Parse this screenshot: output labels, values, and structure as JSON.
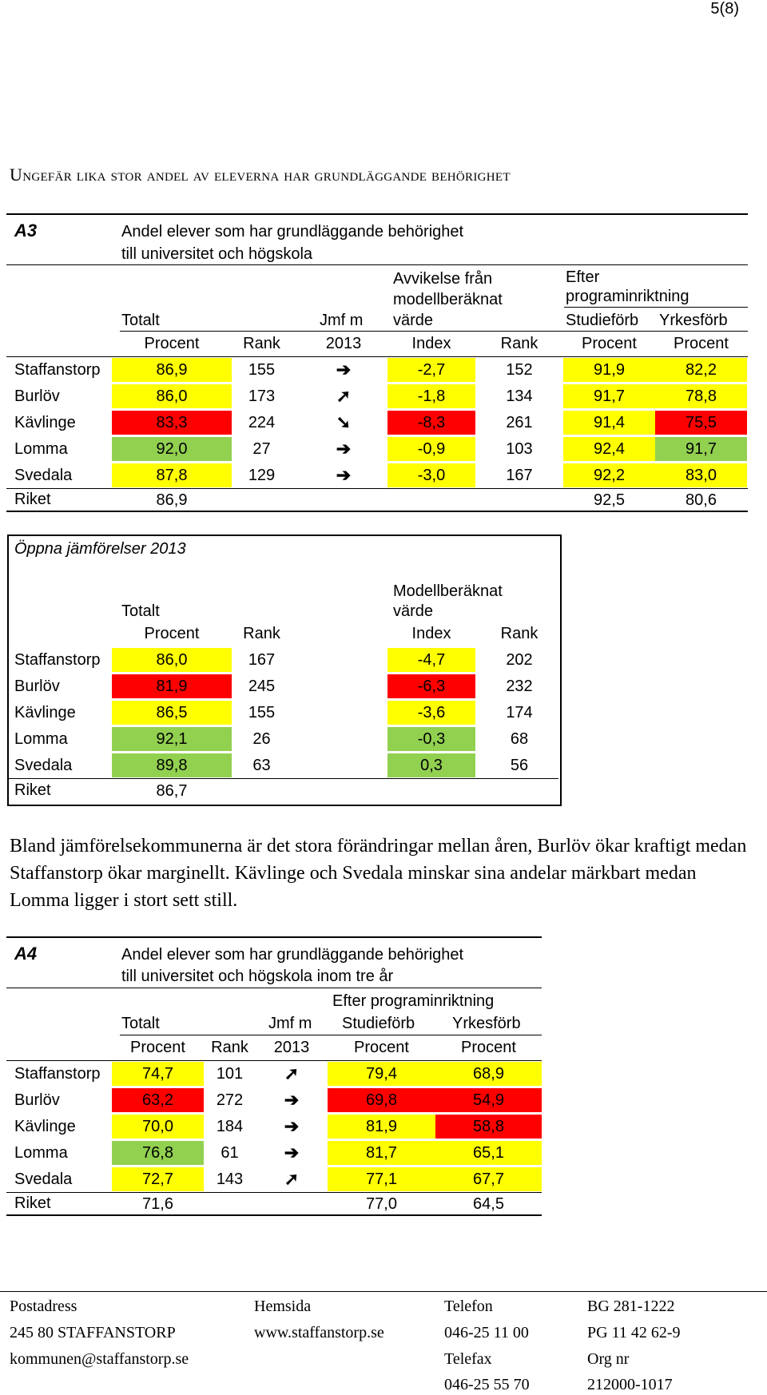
{
  "page_number": "5(8)",
  "heading": "Ungefär lika stor andel av eleverna har grundläggande behörighet",
  "a3": {
    "label": "A3",
    "title_line1": "Andel elever som har grundläggande behörighet",
    "title_line2": "till universitet och högskola",
    "hdr_avvikelse_1": "Avvikelse från",
    "hdr_avvikelse_2": "modellberäknat",
    "hdr_avvikelse_3": "värde",
    "hdr_efter_1": "Efter",
    "hdr_efter_2": "programinriktning",
    "hdr_totalt": "Totalt",
    "hdr_jmf": "Jmf m",
    "hdr_studieforb": "Studieförb",
    "hdr_yrkesforb": "Yrkesförb",
    "sub_procent": "Procent",
    "sub_rank": "Rank",
    "sub_2013": "2013",
    "sub_index": "Index",
    "sub_rank2": "Rank",
    "sub_procent2": "Procent",
    "sub_procent3": "Procent",
    "rows": [
      {
        "name": "Staffanstorp",
        "procent": "86,9",
        "rank": "155",
        "arrow": "➔",
        "index": "-2,7",
        "rank2": "152",
        "studie": "91,9",
        "yrkes": "82,2"
      },
      {
        "name": "Burlöv",
        "procent": "86,0",
        "rank": "173",
        "arrow": "➚",
        "index": "-1,8",
        "rank2": "134",
        "studie": "91,7",
        "yrkes": "78,8"
      },
      {
        "name": "Kävlinge",
        "procent": "83,3",
        "rank": "224",
        "arrow": "➘",
        "index": "-8,3",
        "rank2": "261",
        "studie": "91,4",
        "yrkes": "75,5"
      },
      {
        "name": "Lomma",
        "procent": "92,0",
        "rank": "27",
        "arrow": "➔",
        "index": "-0,9",
        "rank2": "103",
        "studie": "92,4",
        "yrkes": "91,7"
      },
      {
        "name": "Svedala",
        "procent": "87,8",
        "rank": "129",
        "arrow": "➔",
        "index": "-3,0",
        "rank2": "167",
        "studie": "92,2",
        "yrkes": "83,0"
      }
    ],
    "riket": {
      "name": "Riket",
      "procent": "86,9",
      "studie": "92,5",
      "yrkes": "80,6"
    }
  },
  "oppna": {
    "title": "Öppna jämförelser 2013",
    "hdr_totalt": "Totalt",
    "hdr_modell_1": "Modellberäknat",
    "hdr_modell_2": "värde",
    "sub_procent": "Procent",
    "sub_rank": "Rank",
    "sub_index": "Index",
    "sub_rank2": "Rank",
    "rows": [
      {
        "name": "Staffanstorp",
        "procent": "86,0",
        "rank": "167",
        "index": "-4,7",
        "rank2": "202"
      },
      {
        "name": "Burlöv",
        "procent": "81,9",
        "rank": "245",
        "index": "-6,3",
        "rank2": "232"
      },
      {
        "name": "Kävlinge",
        "procent": "86,5",
        "rank": "155",
        "index": "-3,6",
        "rank2": "174"
      },
      {
        "name": "Lomma",
        "procent": "92,1",
        "rank": "26",
        "index": "-0,3",
        "rank2": "68"
      },
      {
        "name": "Svedala",
        "procent": "89,8",
        "rank": "63",
        "index": "0,3",
        "rank2": "56"
      }
    ],
    "riket": {
      "name": "Riket",
      "procent": "86,7"
    }
  },
  "paragraph": "Bland jämförelsekommunerna är det stora förändringar mellan åren, Burlöv ökar kraftigt medan Staffanstorp ökar marginellt. Kävlinge och Svedala minskar sina andelar märkbart medan Lomma ligger i stort sett still.",
  "a4": {
    "label": "A4",
    "title_line1": "Andel elever som har grundläggande behörighet",
    "title_line2": "till universitet och högskola inom tre år",
    "hdr_efter": "Efter programinriktning",
    "hdr_totalt": "Totalt",
    "hdr_jmf": "Jmf m",
    "hdr_studieforb": "Studieförb",
    "hdr_yrkesforb": "Yrkesförb",
    "sub_procent": "Procent",
    "sub_rank": "Rank",
    "sub_2013": "2013",
    "sub_procent2": "Procent",
    "sub_procent3": "Procent",
    "rows": [
      {
        "name": "Staffanstorp",
        "procent": "74,7",
        "rank": "101",
        "arrow": "➚",
        "studie": "79,4",
        "yrkes": "68,9"
      },
      {
        "name": "Burlöv",
        "procent": "63,2",
        "rank": "272",
        "arrow": "➔",
        "studie": "69,8",
        "yrkes": "54,9"
      },
      {
        "name": "Kävlinge",
        "procent": "70,0",
        "rank": "184",
        "arrow": "➔",
        "studie": "81,9",
        "yrkes": "58,8"
      },
      {
        "name": "Lomma",
        "procent": "76,8",
        "rank": "61",
        "arrow": "➔",
        "studie": "81,7",
        "yrkes": "65,1"
      },
      {
        "name": "Svedala",
        "procent": "72,7",
        "rank": "143",
        "arrow": "➚",
        "studie": "77,1",
        "yrkes": "67,7"
      }
    ],
    "riket": {
      "name": "Riket",
      "procent": "71,6",
      "studie": "77,0",
      "yrkes": "64,5"
    }
  },
  "footer": {
    "postadress_label": "Postadress",
    "postadress": "245 80 STAFFANSTORP",
    "email": "kommunen@staffanstorp.se",
    "hemsida_label": "Hemsida",
    "hemsida": "www.staffanstorp.se",
    "telefon_label": "Telefon",
    "telefon": "046-25 11 00",
    "telefax_label": "Telefax",
    "telefax": "046-25 55 70",
    "bg": "BG 281-1222",
    "pg": "PG 11 42 62-9",
    "orgnr_label": "Org nr",
    "orgnr": "212000-1017"
  },
  "colors": {
    "yellow": "#ffff00",
    "red": "#ff0000",
    "green": "#92d050"
  }
}
